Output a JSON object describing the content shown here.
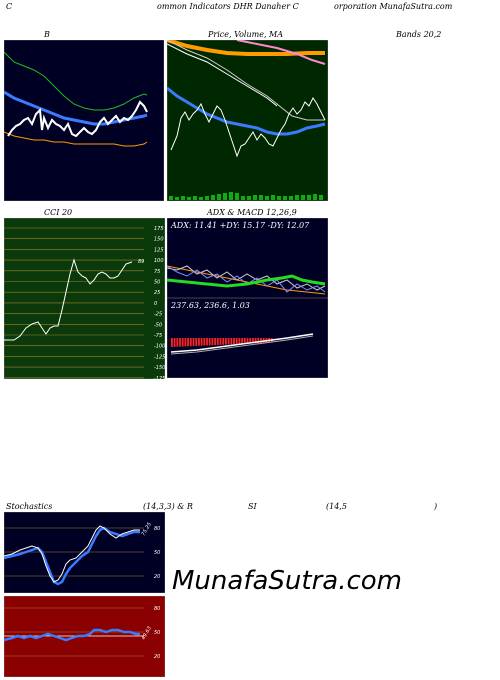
{
  "header": {
    "title_left": "C",
    "title_mid": "ommon  Indicators DHR Danaher C",
    "title_right": "orporation  MunafaSutra.com"
  },
  "row1": {
    "b_label": "B",
    "price_label": "Price,   Volume,  MA",
    "bands_label": "Bands 20,2"
  },
  "row2": {
    "cci_label": "CCI 20",
    "cci_value": "89",
    "cci_ticks": [
      "175",
      "150",
      "125",
      "100",
      "75",
      "50",
      "25",
      "0",
      "-25",
      "-50",
      "-75",
      "-100",
      "-125",
      "-150",
      "-175"
    ],
    "adx_label": "ADX  & MACD 12,26,9",
    "adx_values": "ADX: 11.41  +DY: 15.17  -DY: 12.07",
    "macd_values": "237.63,   236.6,   1.03"
  },
  "row3": {
    "stoch_label": "Stochastics",
    "stoch_params": "(14,3,3) & R",
    "rsi_label": "SI",
    "rsi_params": "(14,5",
    "rsi_close": ")",
    "stoch_value": "75.25",
    "stoch_ticks": [
      "80",
      "50",
      "20"
    ],
    "rsi_value": "49.63",
    "rsi_ticks": [
      "80",
      "50",
      "20"
    ]
  },
  "watermark": "MunafaSutra.com",
  "colors": {
    "navy": "#000024",
    "dark_green": "#002800",
    "cci_green": "#0a3a0a",
    "dark_red": "#8b0000",
    "blue_line": "#3b7bff",
    "orange": "#ff9a00"
  }
}
